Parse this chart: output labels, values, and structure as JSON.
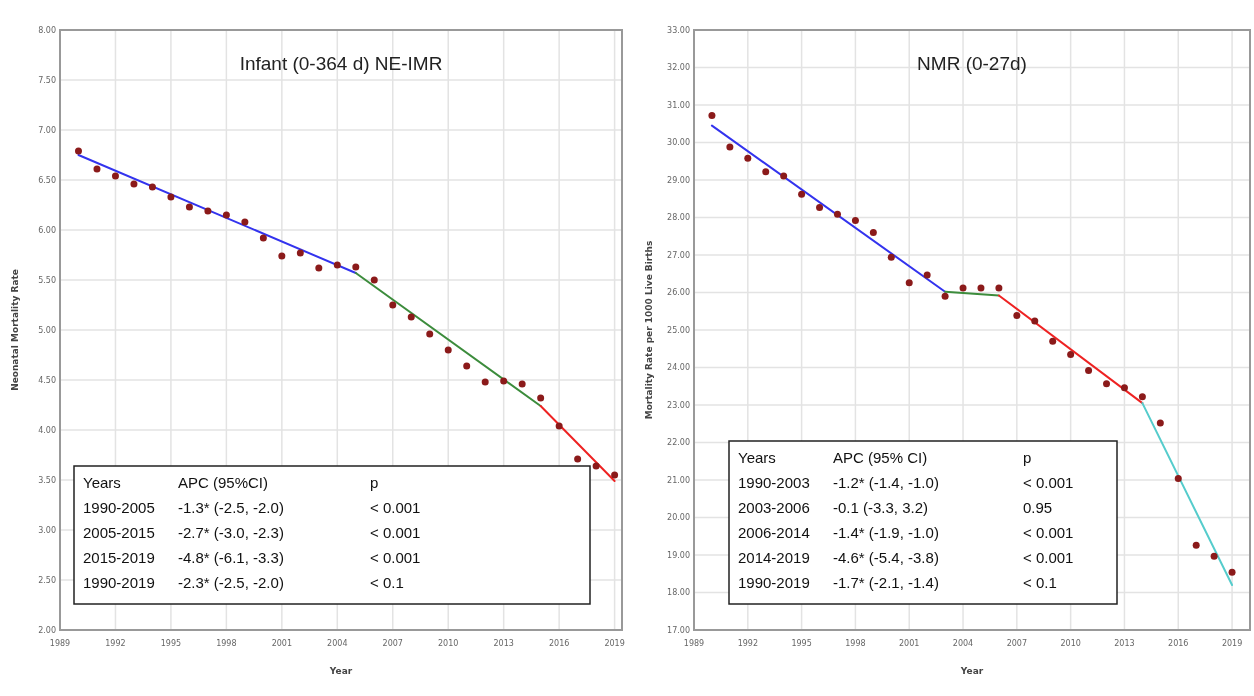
{
  "chart_data": [
    {
      "type": "scatter",
      "title": "Infant (0-364 d) NE-IMR",
      "xlabel": "Year",
      "ylabel": "Neonatal Mortality Rate",
      "x": [
        1990,
        1991,
        1992,
        1993,
        1994,
        1995,
        1996,
        1997,
        1998,
        1999,
        2000,
        2001,
        2002,
        2003,
        2004,
        2005,
        2006,
        2007,
        2008,
        2009,
        2010,
        2011,
        2012,
        2013,
        2014,
        2015,
        2016,
        2017,
        2018,
        2019
      ],
      "series": [
        {
          "type": "scatter",
          "color": "#8b1a1a",
          "marker": "circle",
          "values": [
            6.79,
            6.61,
            6.54,
            6.46,
            6.43,
            6.33,
            6.23,
            6.19,
            6.15,
            6.08,
            5.92,
            5.74,
            5.77,
            5.62,
            5.65,
            5.63,
            5.5,
            5.25,
            5.13,
            4.96,
            4.8,
            4.64,
            4.48,
            4.49,
            4.46,
            4.32,
            4.04,
            3.71,
            3.64,
            3.55
          ]
        },
        {
          "type": "line",
          "color": "#3333ee",
          "x": [
            1990,
            2005
          ],
          "values": [
            6.75,
            5.57
          ]
        },
        {
          "type": "line",
          "color": "#3c8c3c",
          "x": [
            2005,
            2015
          ],
          "values": [
            5.57,
            4.24
          ]
        },
        {
          "type": "line",
          "color": "#ee2222",
          "x": [
            2015,
            2019
          ],
          "values": [
            4.24,
            3.49
          ]
        }
      ],
      "xlim": [
        1989,
        2019.4
      ],
      "xticks": [
        1989,
        1992,
        1995,
        1998,
        2001,
        2004,
        2007,
        2010,
        2013,
        2016,
        2019
      ],
      "ylim": [
        2,
        8
      ],
      "yticks": [
        {
          "value": 2,
          "label": "2.00"
        },
        {
          "value": 2.5,
          "label": "2.50"
        },
        {
          "value": 3,
          "label": "3.00"
        },
        {
          "value": 3.5,
          "label": "3.50"
        },
        {
          "value": 4,
          "label": "4.00"
        },
        {
          "value": 4.5,
          "label": "4.50"
        },
        {
          "value": 5,
          "label": "5.00"
        },
        {
          "value": 5.5,
          "label": "5.50"
        },
        {
          "value": 6,
          "label": "6.00"
        },
        {
          "value": 6.5,
          "label": "6.50"
        },
        {
          "value": 7,
          "label": "7.00"
        },
        {
          "value": 7.5,
          "label": "7.50"
        },
        {
          "value": 8,
          "label": "8.00"
        }
      ],
      "grid": true,
      "annotations": [
        "Years",
        "APC (95%CI)",
        "p",
        "1990-2005",
        "-1.3* (-2.5, -2.0)",
        "< 0.001",
        "2005-2015",
        "-2.7* (-3.0, -2.3)",
        "< 0.001",
        "2015-2019",
        "-4.8* (-6.1, -3.3)",
        "< 0.001",
        "1990-2019",
        "-2.3* (-2.5, -2.0)",
        "< 0.1"
      ]
    },
    {
      "type": "scatter",
      "title": "NMR (0-27d)",
      "xlabel": "Year",
      "ylabel": "Mortality Rate per 1000 Live Births",
      "x": [
        1990,
        1991,
        1992,
        1993,
        1994,
        1995,
        1996,
        1997,
        1998,
        1999,
        2000,
        2001,
        2002,
        2003,
        2004,
        2005,
        2006,
        2007,
        2008,
        2009,
        2010,
        2011,
        2012,
        2013,
        2014,
        2015,
        2016,
        2017,
        2018,
        2019
      ],
      "series": [
        {
          "type": "scatter",
          "color": "#8b1a1a",
          "marker": "circle",
          "values": [
            30.72,
            29.88,
            29.58,
            29.22,
            29.11,
            28.62,
            28.27,
            28.09,
            27.92,
            27.6,
            26.94,
            26.26,
            26.47,
            25.9,
            26.12,
            26.12,
            26.12,
            25.39,
            25.24,
            24.7,
            24.35,
            23.92,
            23.57,
            23.46,
            23.22,
            22.52,
            21.04,
            19.26,
            18.97,
            18.54
          ]
        },
        {
          "type": "line",
          "color": "#3333ee",
          "x": [
            1990,
            2003
          ],
          "values": [
            30.45,
            26.02
          ]
        },
        {
          "type": "line",
          "color": "#3c8c3c",
          "x": [
            2003,
            2006
          ],
          "values": [
            26.02,
            25.92
          ]
        },
        {
          "type": "line",
          "color": "#ee2222",
          "x": [
            2006,
            2014
          ],
          "values": [
            25.92,
            23.05
          ]
        },
        {
          "type": "line",
          "color": "#55cccc",
          "x": [
            2014,
            2019
          ],
          "values": [
            23.05,
            18.2
          ]
        }
      ],
      "xlim": [
        1989,
        2020
      ],
      "xticks": [
        1989,
        1992,
        1995,
        1998,
        2001,
        2004,
        2007,
        2010,
        2013,
        2016,
        2019
      ],
      "ylim": [
        17,
        33
      ],
      "yticks": [
        {
          "value": 17,
          "label": "17.00"
        },
        {
          "value": 18,
          "label": "18.00"
        },
        {
          "value": 19,
          "label": "19.00"
        },
        {
          "value": 20,
          "label": "20.00"
        },
        {
          "value": 21,
          "label": "21.00"
        },
        {
          "value": 22,
          "label": "22.00"
        },
        {
          "value": 23,
          "label": "23.00"
        },
        {
          "value": 24,
          "label": "24.00"
        },
        {
          "value": 25,
          "label": "25.00"
        },
        {
          "value": 26,
          "label": "26.00"
        },
        {
          "value": 27,
          "label": "27.00"
        },
        {
          "value": 28,
          "label": "28.00"
        },
        {
          "value": 29,
          "label": "29.00"
        },
        {
          "value": 30,
          "label": "30.00"
        },
        {
          "value": 31,
          "label": "31.00"
        },
        {
          "value": 32,
          "label": "32.00"
        },
        {
          "value": 33,
          "label": "33.00"
        }
      ],
      "grid": true,
      "annotations": [
        "Years",
        "APC (95% CI)",
        "p",
        "1990-2003",
        "-1.2* (-1.4, -1.0)",
        "< 0.001",
        "2003-2006",
        "-0.1 (-3.3, 3.2)",
        "0.95",
        "2006-2014",
        "-1.4* (-1.9, -1.0)",
        "< 0.001",
        "2014-2019",
        "-4.6* (-5.4, -3.8)",
        "< 0.001",
        "1990-2019",
        "-1.7* (-2.1, -1.4)",
        "< 0.1"
      ]
    }
  ]
}
